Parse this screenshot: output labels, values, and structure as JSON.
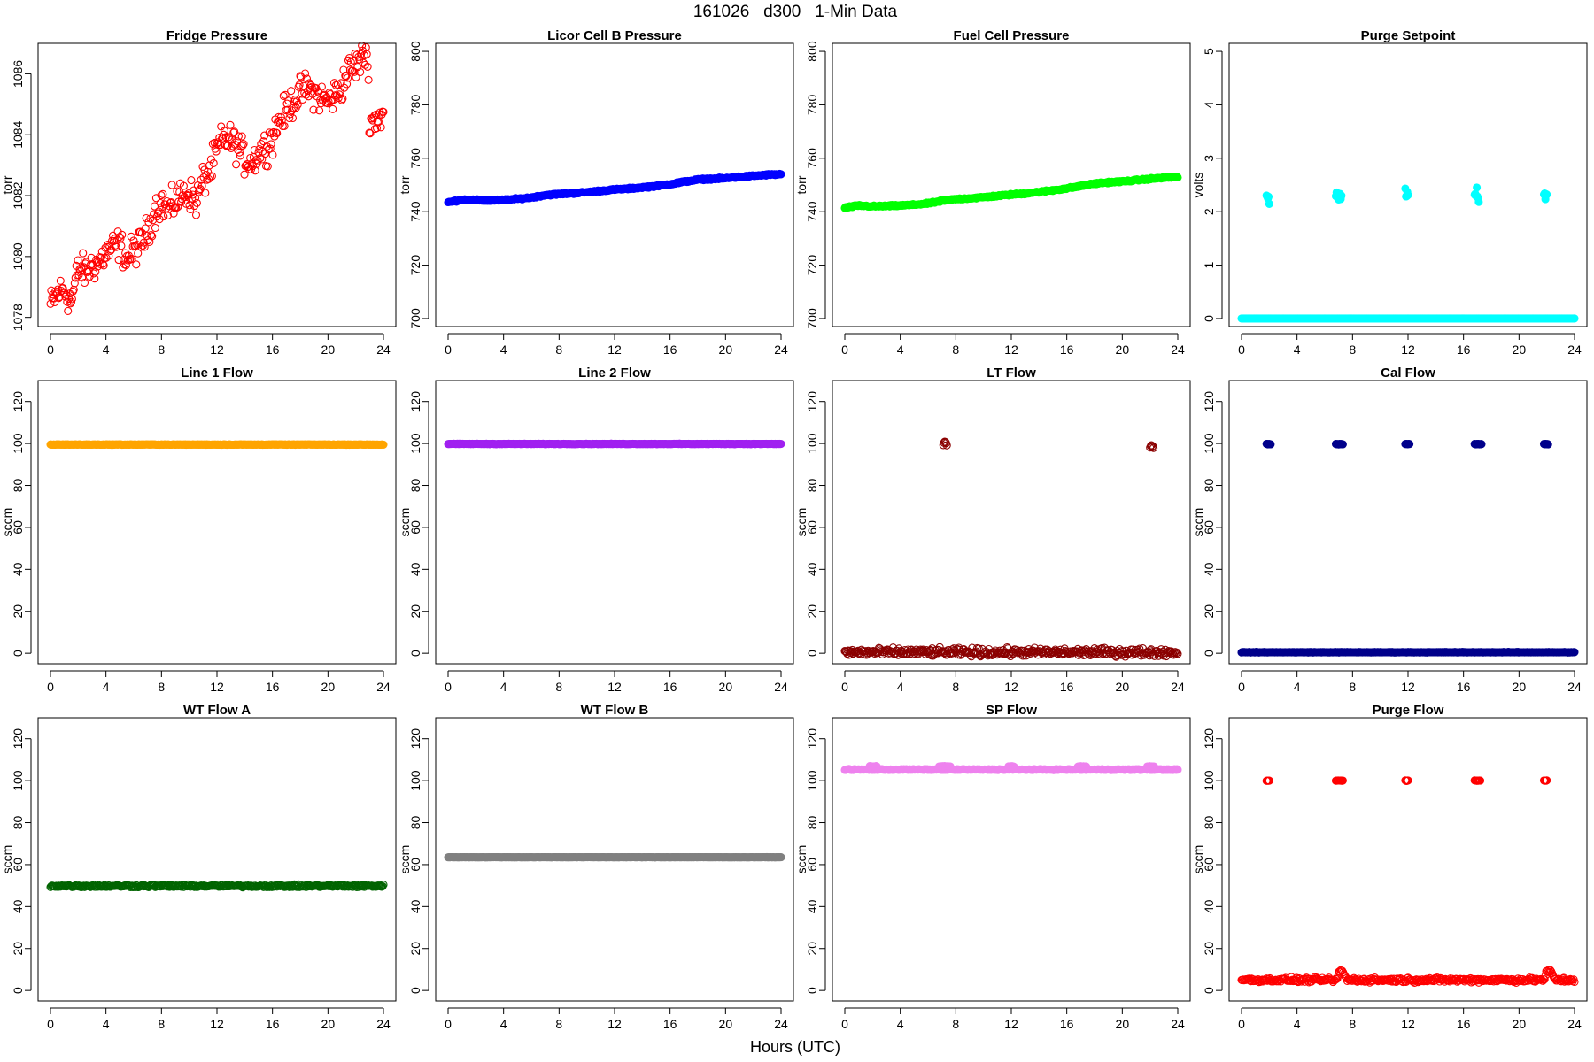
{
  "figure": {
    "title": "161026   d300   1-Min Data",
    "xlabel": "Hours (UTC)"
  },
  "chart_data": [
    {
      "type": "scatter",
      "title": "Fridge Pressure",
      "ylabel": "torr",
      "xlim": [
        0,
        24
      ],
      "xticks": [
        0,
        4,
        8,
        12,
        16,
        20,
        24
      ],
      "ylim": [
        1077.7,
        1087.0
      ],
      "yticks": [
        1078,
        1080,
        1082,
        1084,
        1086
      ],
      "color": "#ff0000",
      "marker": "open",
      "noise": 0.45,
      "x": [
        0,
        0.5,
        1,
        1.5,
        2,
        2.5,
        3,
        3.5,
        4,
        4.5,
        5,
        5.5,
        6,
        6.5,
        7,
        7.5,
        8,
        8.5,
        9,
        9.5,
        10,
        10.5,
        11,
        11.5,
        12,
        12.5,
        13,
        13.5,
        14,
        14.5,
        15,
        15.5,
        16,
        16.5,
        17,
        17.5,
        18,
        18.5,
        19,
        19.5,
        20,
        20.5,
        21,
        21.5,
        22,
        22.5,
        22.8,
        23,
        23.5,
        24
      ],
      "y": [
        1078.4,
        1078.8,
        1078.9,
        1078.5,
        1079.6,
        1079.5,
        1079.7,
        1079.8,
        1080.1,
        1080.3,
        1080.4,
        1079.9,
        1080.2,
        1080.4,
        1080.8,
        1081.5,
        1081.8,
        1081.5,
        1081.8,
        1082.0,
        1082.1,
        1081.8,
        1082.5,
        1082.8,
        1083.5,
        1083.9,
        1083.8,
        1083.6,
        1083.2,
        1083.1,
        1083.4,
        1083.6,
        1083.9,
        1084.5,
        1084.8,
        1085.1,
        1085.4,
        1085.5,
        1085.4,
        1085.2,
        1085.1,
        1085.3,
        1085.6,
        1086.1,
        1086.3,
        1086.5,
        1086.8,
        1084.5,
        1084.5,
        1084.7
      ]
    },
    {
      "type": "scatter",
      "title": "Licor Cell B Pressure",
      "ylabel": "torr",
      "xlim": [
        0,
        24
      ],
      "xticks": [
        0,
        4,
        8,
        12,
        16,
        20,
        24
      ],
      "ylim": [
        697,
        803
      ],
      "yticks": [
        700,
        720,
        740,
        760,
        780,
        800
      ],
      "color": "#0000ff",
      "marker": "filled",
      "noise": 0.25,
      "x": [
        0,
        1,
        2,
        3,
        4,
        5,
        6,
        7,
        8,
        9,
        10,
        11,
        12,
        13,
        14,
        15,
        16,
        17,
        18,
        19,
        20,
        21,
        22,
        23,
        24
      ],
      "y": [
        743.5,
        744.5,
        744.3,
        744.2,
        744.4,
        744.8,
        745.3,
        746.2,
        746.6,
        746.9,
        747.3,
        747.8,
        748.3,
        748.6,
        749.1,
        749.6,
        750.3,
        751.2,
        752.0,
        752.3,
        752.5,
        753.0,
        753.4,
        753.8,
        754.0
      ]
    },
    {
      "type": "scatter",
      "title": "Fuel Cell Pressure",
      "ylabel": "torr",
      "xlim": [
        0,
        24
      ],
      "xticks": [
        0,
        4,
        8,
        12,
        16,
        20,
        24
      ],
      "ylim": [
        697,
        803
      ],
      "yticks": [
        700,
        720,
        740,
        760,
        780,
        800
      ],
      "color": "#00ff00",
      "marker": "filled",
      "noise": 0.25,
      "x": [
        0,
        1,
        2,
        3,
        4,
        5,
        6,
        7,
        8,
        9,
        10,
        11,
        12,
        13,
        14,
        15,
        16,
        17,
        18,
        19,
        20,
        21,
        22,
        23,
        24
      ],
      "y": [
        741.5,
        742.3,
        742.0,
        742.1,
        742.3,
        742.6,
        743.1,
        744.0,
        744.7,
        745.0,
        745.4,
        745.9,
        746.4,
        746.8,
        747.4,
        748.0,
        748.7,
        749.6,
        750.5,
        751.0,
        751.3,
        751.8,
        752.3,
        752.7,
        753.0
      ]
    },
    {
      "type": "scatter",
      "title": "Purge Setpoint",
      "ylabel": "volts",
      "xlim": [
        0,
        24
      ],
      "xticks": [
        0,
        4,
        8,
        12,
        16,
        20,
        24
      ],
      "ylim": [
        -0.15,
        5.15
      ],
      "yticks": [
        0,
        1,
        2,
        3,
        4,
        5
      ],
      "color": "#00ffff",
      "marker": "filled",
      "noise": 0,
      "x": [
        0,
        24
      ],
      "y": [
        0,
        0
      ],
      "events": [
        {
          "x": [
            1.8,
            2.0
          ],
          "y": 2.27
        },
        {
          "x": [
            6.8,
            7.2
          ],
          "y": 2.27
        },
        {
          "x": [
            11.8,
            12.0
          ],
          "y": 2.27
        },
        {
          "x": [
            16.8,
            17.1
          ],
          "y": 2.27
        },
        {
          "x": [
            21.8,
            22.0
          ],
          "y": 2.27
        }
      ]
    },
    {
      "type": "scatter",
      "title": "Line 1 Flow",
      "ylabel": "sccm",
      "xlim": [
        0,
        24
      ],
      "xticks": [
        0,
        4,
        8,
        12,
        16,
        20,
        24
      ],
      "ylim": [
        -5,
        130
      ],
      "yticks": [
        0,
        20,
        40,
        60,
        80,
        100,
        120
      ],
      "color": "#ffa500",
      "marker": "filled",
      "noise": 0.1,
      "x": [
        0,
        24
      ],
      "y": [
        99.5,
        99.5
      ]
    },
    {
      "type": "scatter",
      "title": "Line 2 Flow",
      "ylabel": "sccm",
      "xlim": [
        0,
        24
      ],
      "xticks": [
        0,
        4,
        8,
        12,
        16,
        20,
        24
      ],
      "ylim": [
        -5,
        130
      ],
      "yticks": [
        0,
        20,
        40,
        60,
        80,
        100,
        120
      ],
      "color": "#a020f0",
      "marker": "filled",
      "noise": 0.1,
      "x": [
        0,
        24
      ],
      "y": [
        99.8,
        99.8
      ]
    },
    {
      "type": "scatter",
      "title": "LT Flow",
      "ylabel": "sccm",
      "xlim": [
        0,
        24
      ],
      "xticks": [
        0,
        4,
        8,
        12,
        16,
        20,
        24
      ],
      "ylim": [
        -5,
        130
      ],
      "yticks": [
        0,
        20,
        40,
        60,
        80,
        100,
        120
      ],
      "color": "#8b0000",
      "marker": "open",
      "noise": 1.6,
      "x": [
        0,
        24
      ],
      "y": [
        0.5,
        0.5
      ],
      "events": [
        {
          "x": [
            7.1,
            7.35
          ],
          "y": 100
        },
        {
          "x": [
            22.0,
            22.25
          ],
          "y": 99
        }
      ]
    },
    {
      "type": "scatter",
      "title": "Cal Flow",
      "ylabel": "sccm",
      "xlim": [
        0,
        24
      ],
      "xticks": [
        0,
        4,
        8,
        12,
        16,
        20,
        24
      ],
      "ylim": [
        -5,
        130
      ],
      "yticks": [
        0,
        20,
        40,
        60,
        80,
        100,
        120
      ],
      "color": "#00008b",
      "marker": "filled",
      "noise": 0.1,
      "x": [
        0,
        24
      ],
      "y": [
        0.5,
        0.5
      ],
      "events": [
        {
          "x": [
            1.8,
            2.1
          ],
          "y": 99.7
        },
        {
          "x": [
            6.8,
            7.3
          ],
          "y": 99.7
        },
        {
          "x": [
            11.8,
            12.1
          ],
          "y": 99.7
        },
        {
          "x": [
            16.8,
            17.3
          ],
          "y": 99.7
        },
        {
          "x": [
            21.8,
            22.1
          ],
          "y": 99.7
        }
      ]
    },
    {
      "type": "scatter",
      "title": "WT Flow A",
      "ylabel": "sccm",
      "xlim": [
        0,
        24
      ],
      "xticks": [
        0,
        4,
        8,
        12,
        16,
        20,
        24
      ],
      "ylim": [
        -5,
        130
      ],
      "yticks": [
        0,
        20,
        40,
        60,
        80,
        100,
        120
      ],
      "color": "#006400",
      "marker": "open",
      "noise": 0.5,
      "x": [
        0,
        24
      ],
      "y": [
        49.8,
        49.8
      ]
    },
    {
      "type": "scatter",
      "title": "WT Flow B",
      "ylabel": "sccm",
      "xlim": [
        0,
        24
      ],
      "xticks": [
        0,
        4,
        8,
        12,
        16,
        20,
        24
      ],
      "ylim": [
        -5,
        130
      ],
      "yticks": [
        0,
        20,
        40,
        60,
        80,
        100,
        120
      ],
      "color": "#808080",
      "marker": "filled",
      "noise": 0.05,
      "x": [
        0,
        24
      ],
      "y": [
        63.5,
        63.5
      ]
    },
    {
      "type": "scatter",
      "title": "SP Flow",
      "ylabel": "sccm",
      "xlim": [
        0,
        24
      ],
      "xticks": [
        0,
        4,
        8,
        12,
        16,
        20,
        24
      ],
      "ylim": [
        -5,
        130
      ],
      "yticks": [
        0,
        20,
        40,
        60,
        80,
        100,
        120
      ],
      "color": "#ee82ee",
      "marker": "filled",
      "noise": 0.2,
      "x": [
        0,
        24
      ],
      "y": [
        105.3,
        105.3
      ],
      "events": [
        {
          "x": [
            1.8,
            2.3
          ],
          "y": 106.8
        },
        {
          "x": [
            6.8,
            7.6
          ],
          "y": 106.8
        },
        {
          "x": [
            11.8,
            12.2
          ],
          "y": 106.8
        },
        {
          "x": [
            16.8,
            17.4
          ],
          "y": 106.8
        },
        {
          "x": [
            21.8,
            22.3
          ],
          "y": 106.8
        }
      ]
    },
    {
      "type": "scatter",
      "title": "Purge Flow",
      "ylabel": "sccm",
      "xlim": [
        0,
        24
      ],
      "xticks": [
        0,
        4,
        8,
        12,
        16,
        20,
        24
      ],
      "ylim": [
        -5,
        130
      ],
      "yticks": [
        0,
        20,
        40,
        60,
        80,
        100,
        120
      ],
      "color": "#ff0000",
      "marker": "open",
      "noise": 0.9,
      "x": [
        0,
        6.9,
        7.0,
        7.3,
        7.6,
        21.8,
        22.0,
        22.3,
        22.6,
        24
      ],
      "y": [
        5,
        5,
        9,
        9,
        5,
        5,
        9,
        9,
        5,
        5
      ],
      "events": [
        {
          "x": [
            1.8,
            2.0
          ],
          "y": 100
        },
        {
          "x": [
            6.8,
            7.3
          ],
          "y": 100
        },
        {
          "x": [
            11.8,
            12.0
          ],
          "y": 100
        },
        {
          "x": [
            16.8,
            17.2
          ],
          "y": 100
        },
        {
          "x": [
            21.8,
            22.0
          ],
          "y": 100
        }
      ]
    }
  ]
}
